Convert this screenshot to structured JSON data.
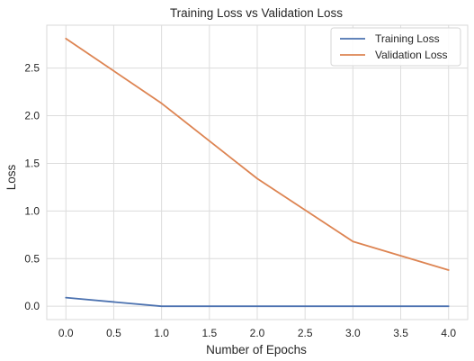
{
  "chart_data": {
    "type": "line",
    "title": "Training Loss vs Validation Loss",
    "xlabel": "Number of Epochs",
    "ylabel": "Loss",
    "xlim": [
      -0.2,
      4.2
    ],
    "ylim": [
      -0.14,
      2.95
    ],
    "xticks": [
      0.0,
      0.5,
      1.0,
      1.5,
      2.0,
      2.5,
      3.0,
      3.5,
      4.0
    ],
    "xtick_labels": [
      "0.0",
      "0.5",
      "1.0",
      "1.5",
      "2.0",
      "2.5",
      "3.0",
      "3.5",
      "4.0"
    ],
    "yticks": [
      0.0,
      0.5,
      1.0,
      1.5,
      2.0,
      2.5
    ],
    "ytick_labels": [
      "0.0",
      "0.5",
      "1.0",
      "1.5",
      "2.0",
      "2.5"
    ],
    "grid": true,
    "legend_position": "top-right",
    "x": [
      0,
      1,
      2,
      3,
      4
    ],
    "series": [
      {
        "name": "Training Loss",
        "color": "#4c72b0",
        "values": [
          0.09,
          0.0,
          0.0,
          0.0,
          0.0
        ]
      },
      {
        "name": "Validation Loss",
        "color": "#dd8452",
        "values": [
          2.81,
          2.13,
          1.34,
          0.68,
          0.38
        ]
      }
    ]
  }
}
